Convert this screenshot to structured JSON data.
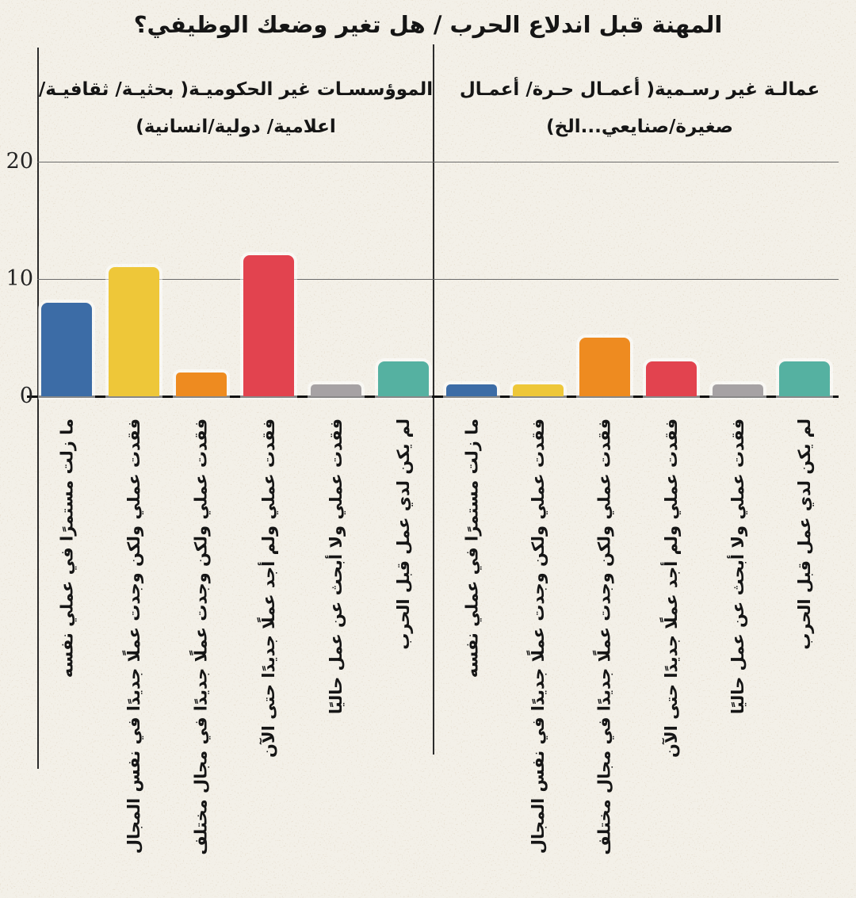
{
  "chart_data": {
    "type": "bar",
    "title": "المهنة قبل اندلاع الحرب / هل تغير وضعك الوظيفي؟",
    "xlabel": "",
    "ylabel": "",
    "ylim": [
      0,
      20
    ],
    "yticks": [
      0,
      10,
      20
    ],
    "grid": true,
    "legend": "none",
    "bar_colors": [
      "#3c6ca6",
      "#eec739",
      "#ee8b20",
      "#e2434f",
      "#a6a2a4",
      "#55b1a1"
    ],
    "categories": [
      "ما زلت مستمرًا في عملي نفسه",
      "فقدت عملي ولكن وجدت عملًا جديدًا في نفس المجال",
      "فقدت عملي ولكن وجدت عملًا جديدًا في مجال مختلف",
      "فقدت عملي ولم أجد عملًا جديدًا حتى الآن",
      "فقدت عملي ولا أبحث عن عمل حاليًا",
      "لم يكن لدي عمل قبل الحرب"
    ],
    "groups": [
      {
        "name_line1": "الموؤسسـات غير الحكوميـة( بحثيـة/ ثقافيـة/",
        "name_line2": "اعلامية/ دولية/انسانية)",
        "values": [
          8,
          11,
          2,
          12,
          1,
          3
        ]
      },
      {
        "name_line1": "عمالـة غير رسـمية( أعمـال حـرة/ أعمـال",
        "name_line2": "صغيرة/صنايعي...الخ)",
        "values": [
          1,
          1,
          5,
          3,
          1,
          3
        ]
      }
    ]
  },
  "y_axis": {
    "tick_labels": [
      "20",
      "10",
      "0"
    ]
  },
  "colors": {
    "background": "#f3f0e8",
    "axis": "#2b2b2b",
    "gridline": "#6a6a6a",
    "baseline": "#111111",
    "speckle": "#c4b08f",
    "text": "#151515"
  }
}
